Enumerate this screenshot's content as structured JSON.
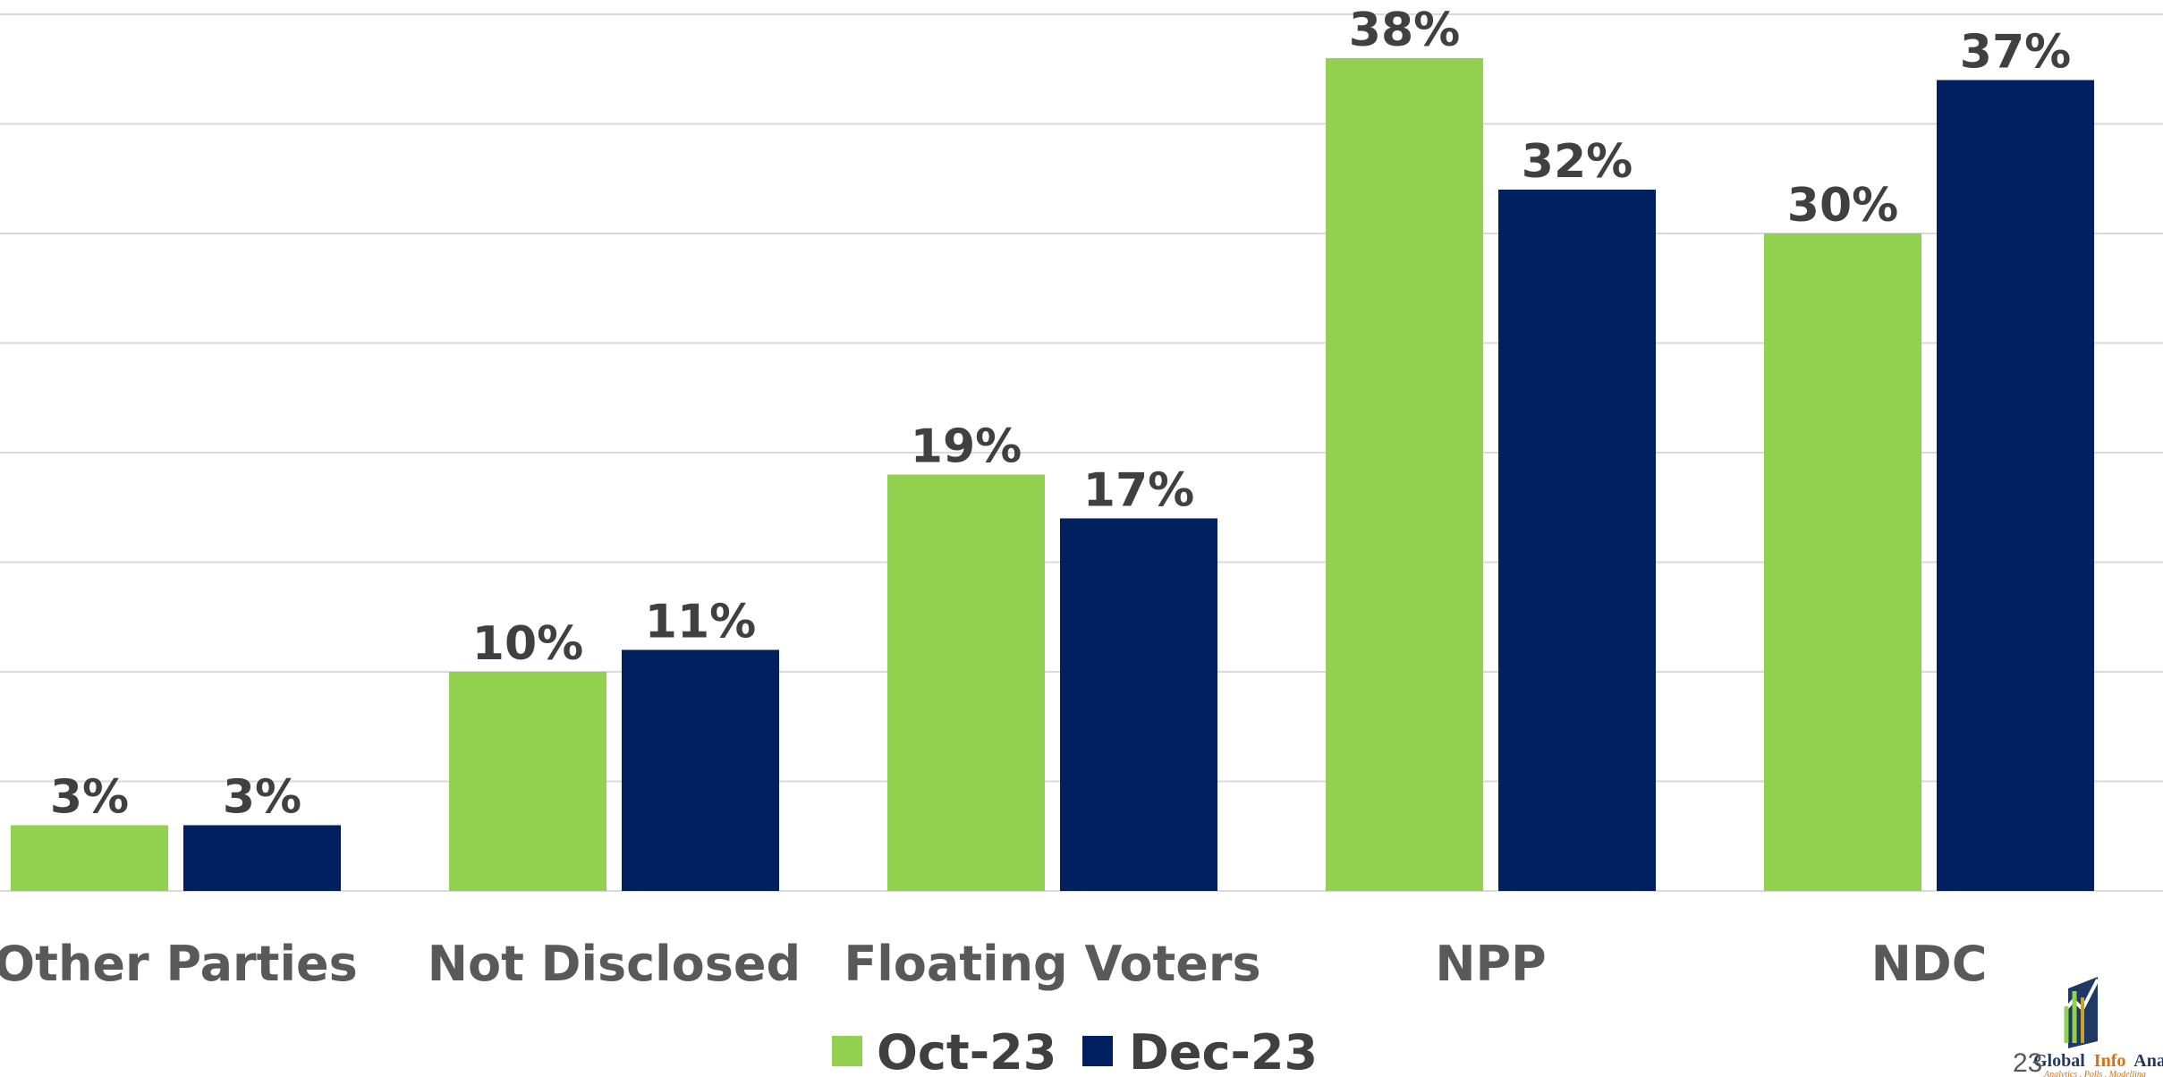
{
  "chart_data": {
    "type": "bar",
    "categories": [
      "Other Parties",
      "Not Disclosed",
      "Floating Voters",
      "NPP",
      "NDC"
    ],
    "series": [
      {
        "name": "Oct-23",
        "color": "#92d050",
        "values": [
          3,
          10,
          19,
          38,
          30
        ],
        "labels": [
          "3%",
          "10%",
          "19%",
          "38%",
          "30%"
        ]
      },
      {
        "name": "Dec-23",
        "color": "#002060",
        "values": [
          3,
          11,
          17,
          32,
          37
        ],
        "labels": [
          "3%",
          "11%",
          "17%",
          "32%",
          "37%"
        ]
      }
    ],
    "ylim": [
      0,
      40
    ],
    "grid": true,
    "legend_position": "bottom"
  },
  "footer": {
    "page_number": "23",
    "logo": {
      "name_part1": "Global",
      "name_part2": "Info",
      "name_part3": "Analytic",
      "tagline": "Analytics . Polls . Modelling"
    }
  }
}
